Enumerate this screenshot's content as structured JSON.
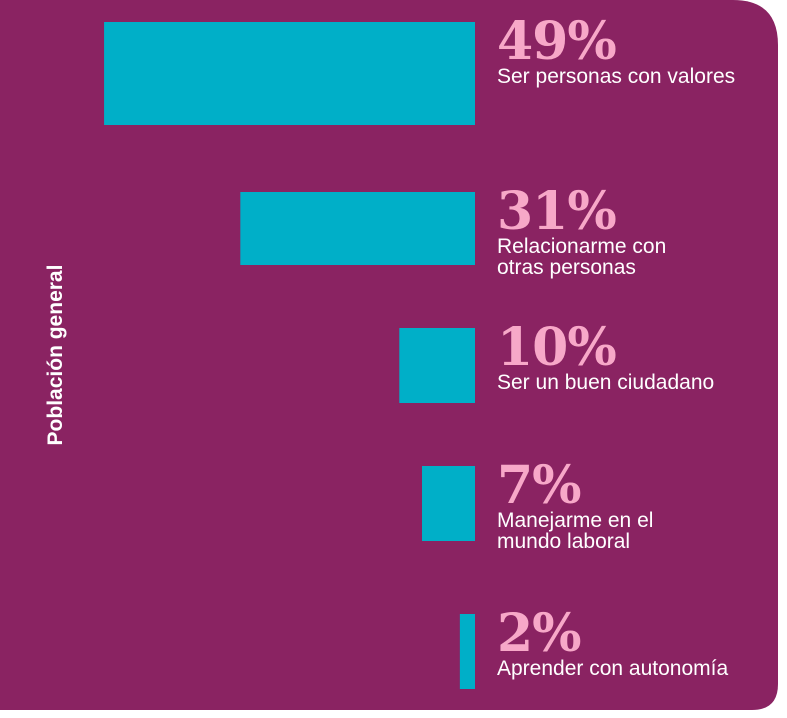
{
  "chart_data": {
    "type": "bar",
    "orientation": "horizontal",
    "ylabel": "Población general",
    "categories": [
      "Ser personas con valores",
      "Relacionarme con\notras personas",
      "Ser un buen ciudadano",
      "Manejarme en el\nmundo laboral",
      "Aprender con autonomía"
    ],
    "values": [
      49,
      31,
      10,
      7,
      2
    ],
    "value_labels": [
      "49%",
      "31%",
      "10%",
      "7%",
      "2%"
    ],
    "color": "#00afc8"
  }
}
